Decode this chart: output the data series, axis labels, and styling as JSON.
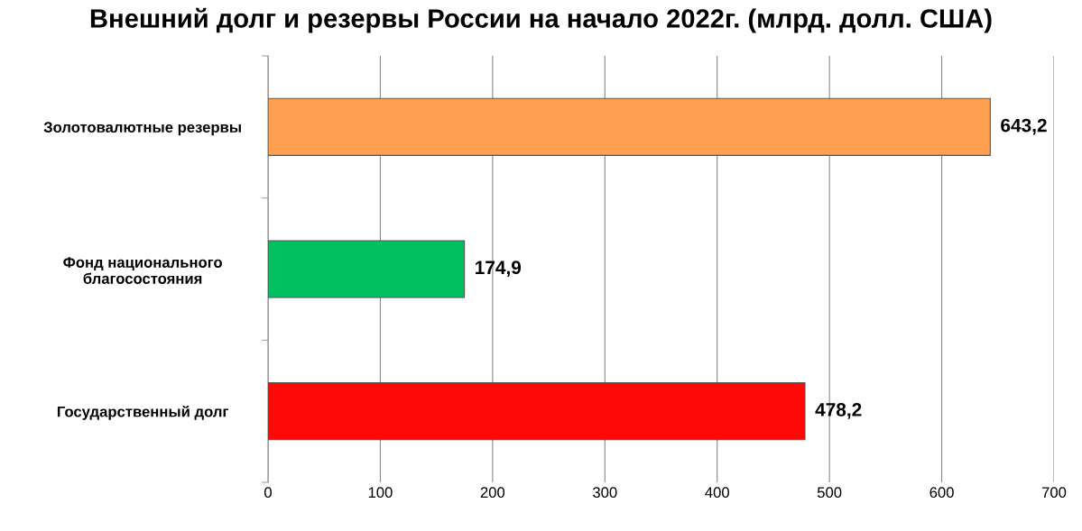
{
  "chart_data": {
    "type": "bar",
    "orientation": "horizontal",
    "title": "Внешний долг и резервы России на начало 2022г. (млрд. долл. США)",
    "categories": [
      "Золотовалютные резервы",
      "Фонд национального\nблагосостояния",
      "Государственный долг"
    ],
    "values": [
      643.2,
      174.9,
      478.2
    ],
    "colors": [
      "#ffa050",
      "#00c060",
      "#ff0808"
    ],
    "value_labels": [
      "643,2",
      "174,9",
      "478,2"
    ],
    "xlim": [
      0,
      700
    ],
    "xticks": [
      0,
      100,
      200,
      300,
      400,
      500,
      600,
      700
    ],
    "grid": "x"
  }
}
